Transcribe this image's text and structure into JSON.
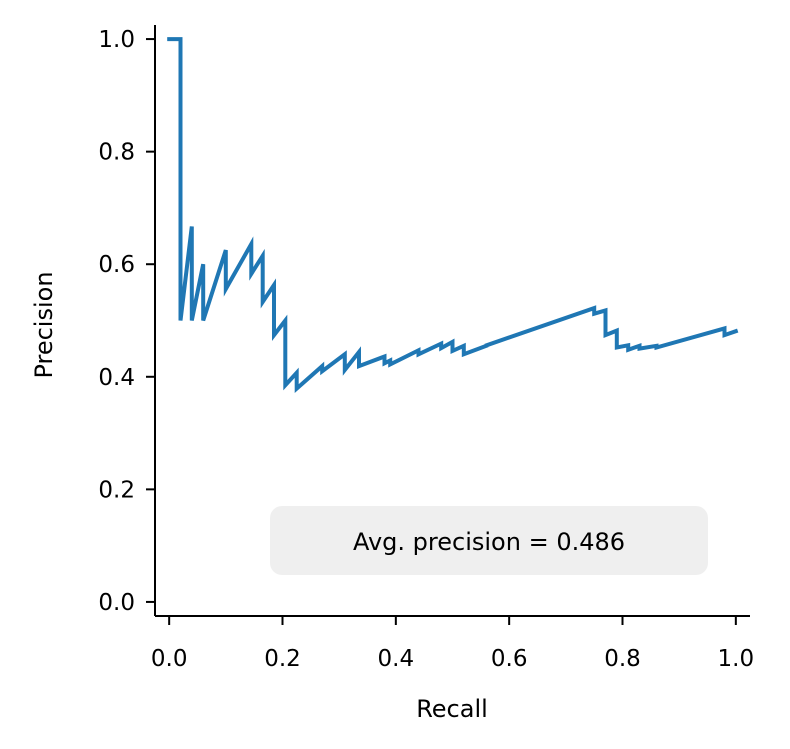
{
  "chart_data": {
    "type": "line",
    "xlabel": "Recall",
    "ylabel": "Precision",
    "xlim": [
      -0.025,
      1.025
    ],
    "ylim": [
      -0.025,
      1.025
    ],
    "xticks": [
      0.0,
      0.2,
      0.4,
      0.6,
      0.8,
      1.0
    ],
    "xtick_labels": [
      "0.0",
      "0.2",
      "0.4",
      "0.6",
      "0.8",
      "1.0"
    ],
    "yticks": [
      0.0,
      0.2,
      0.4,
      0.6,
      0.8,
      1.0
    ],
    "ytick_labels": [
      "0.0",
      "0.2",
      "0.4",
      "0.6",
      "0.8",
      "1.0"
    ],
    "grid": false,
    "annotation": "Avg. precision = 0.486",
    "series": [
      {
        "color": "#1f77b4",
        "x": [
          0.0,
          0.02,
          0.02,
          0.02,
          0.04,
          0.04,
          0.06,
          0.06,
          0.1,
          0.1,
          0.145,
          0.145,
          0.165,
          0.165,
          0.185,
          0.185,
          0.205,
          0.205,
          0.225,
          0.225,
          0.27,
          0.27,
          0.31,
          0.31,
          0.335,
          0.335,
          0.38,
          0.38,
          0.39,
          0.39,
          0.44,
          0.44,
          0.48,
          0.48,
          0.5,
          0.5,
          0.52,
          0.52,
          0.56,
          0.56,
          0.75,
          0.75,
          0.77,
          0.77,
          0.79,
          0.79,
          0.81,
          0.81,
          0.83,
          0.83,
          0.86,
          0.86,
          0.98,
          0.98,
          1.0
        ],
        "y": [
          1.0,
          1.0,
          0.67,
          0.5,
          0.667,
          0.5,
          0.6,
          0.5,
          0.625,
          0.556,
          0.636,
          0.583,
          0.615,
          0.533,
          0.563,
          0.474,
          0.5,
          0.385,
          0.407,
          0.379,
          0.419,
          0.41,
          0.44,
          0.412,
          0.444,
          0.419,
          0.436,
          0.424,
          0.429,
          0.422,
          0.447,
          0.44,
          0.459,
          0.451,
          0.462,
          0.446,
          0.455,
          0.44,
          0.455,
          0.456,
          0.522,
          0.512,
          0.518,
          0.474,
          0.482,
          0.452,
          0.456,
          0.448,
          0.455,
          0.45,
          0.455,
          0.452,
          0.486,
          0.474,
          0.481
        ]
      }
    ]
  }
}
